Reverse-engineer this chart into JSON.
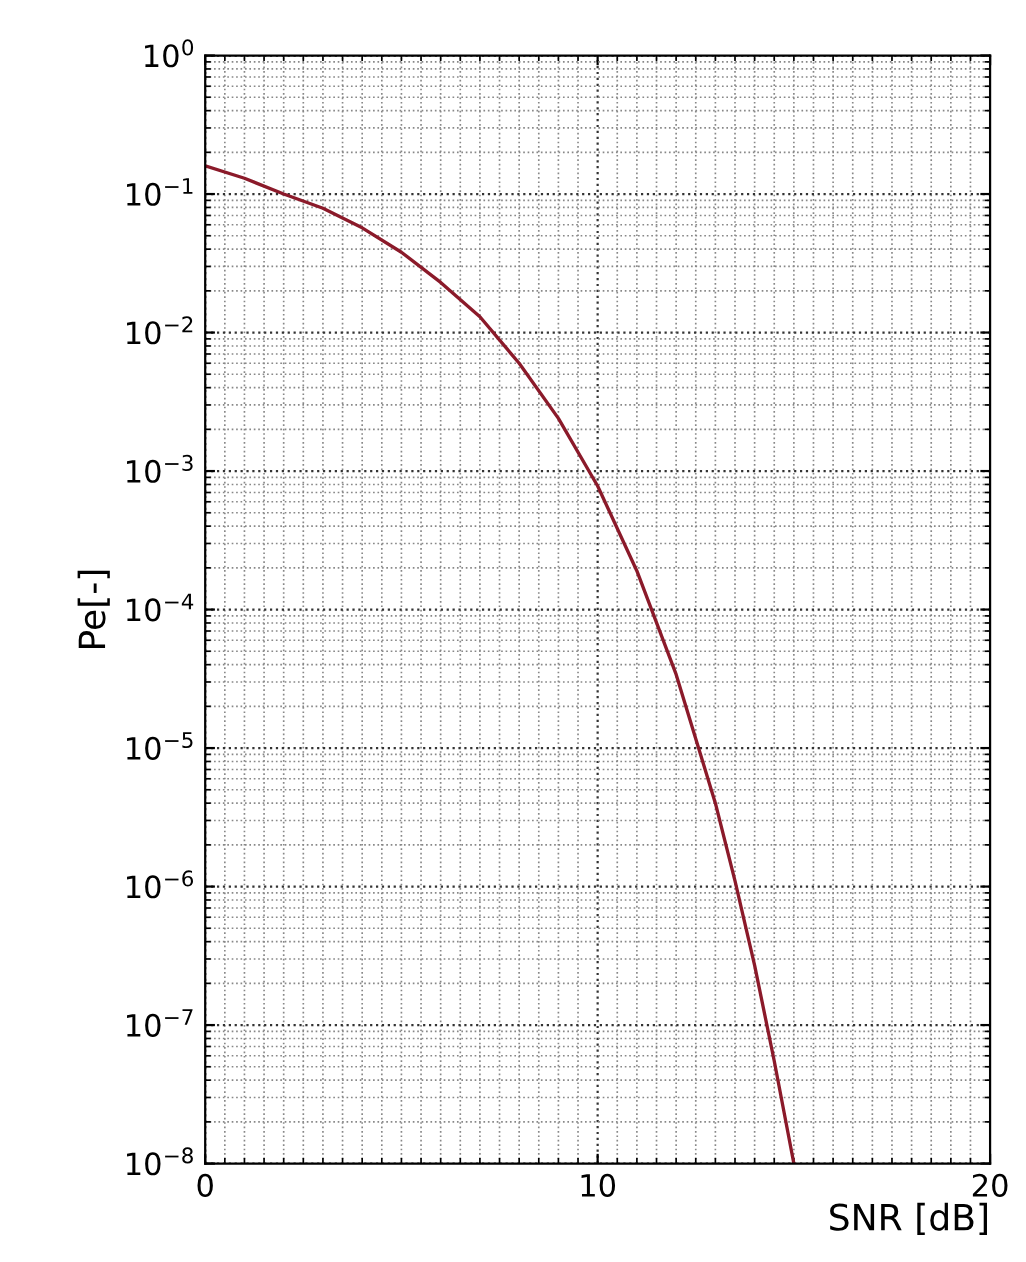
{
  "chart_data": {
    "type": "line",
    "xlabel": "SNR [dB]",
    "ylabel": "Pe[-]",
    "x": [
      0,
      1,
      2,
      3,
      4,
      5,
      6,
      7,
      8,
      9,
      10,
      11,
      12,
      13,
      13.5,
      14,
      14.5,
      15
    ],
    "series": [
      {
        "color": "#8b1a2a",
        "values": [
          0.16,
          0.13,
          0.1,
          0.079,
          0.057,
          0.038,
          0.023,
          0.013,
          0.006,
          0.0024,
          0.00078,
          0.00019,
          3.4e-05,
          4e-06,
          1.1e-06,
          2.7e-07,
          5.5e-08,
          1e-08
        ]
      }
    ],
    "log": "y",
    "xlim": [
      0,
      20
    ],
    "xticks": [
      0,
      10,
      20
    ],
    "ylim": [
      1e-08,
      1
    ],
    "yticks": [
      {
        "value": 1e-08,
        "label": "10$^{−8}$"
      },
      {
        "value": 1e-07,
        "label": "10$^{−7}$"
      },
      {
        "value": 1e-06,
        "label": "10$^{−6}$"
      },
      {
        "value": 1e-05,
        "label": "10$^{−5}$"
      },
      {
        "value": 0.0001,
        "label": "10$^{−4}$"
      },
      {
        "value": 0.001,
        "label": "10$^{−3}$"
      },
      {
        "value": 0.01,
        "label": "10$^{−2}$"
      },
      {
        "value": 0.1,
        "label": "10$^{−1}$"
      },
      {
        "value": 1,
        "label": "10$^{0}$"
      }
    ],
    "grid": true,
    "marker": "none",
    "line_style": "solid"
  }
}
